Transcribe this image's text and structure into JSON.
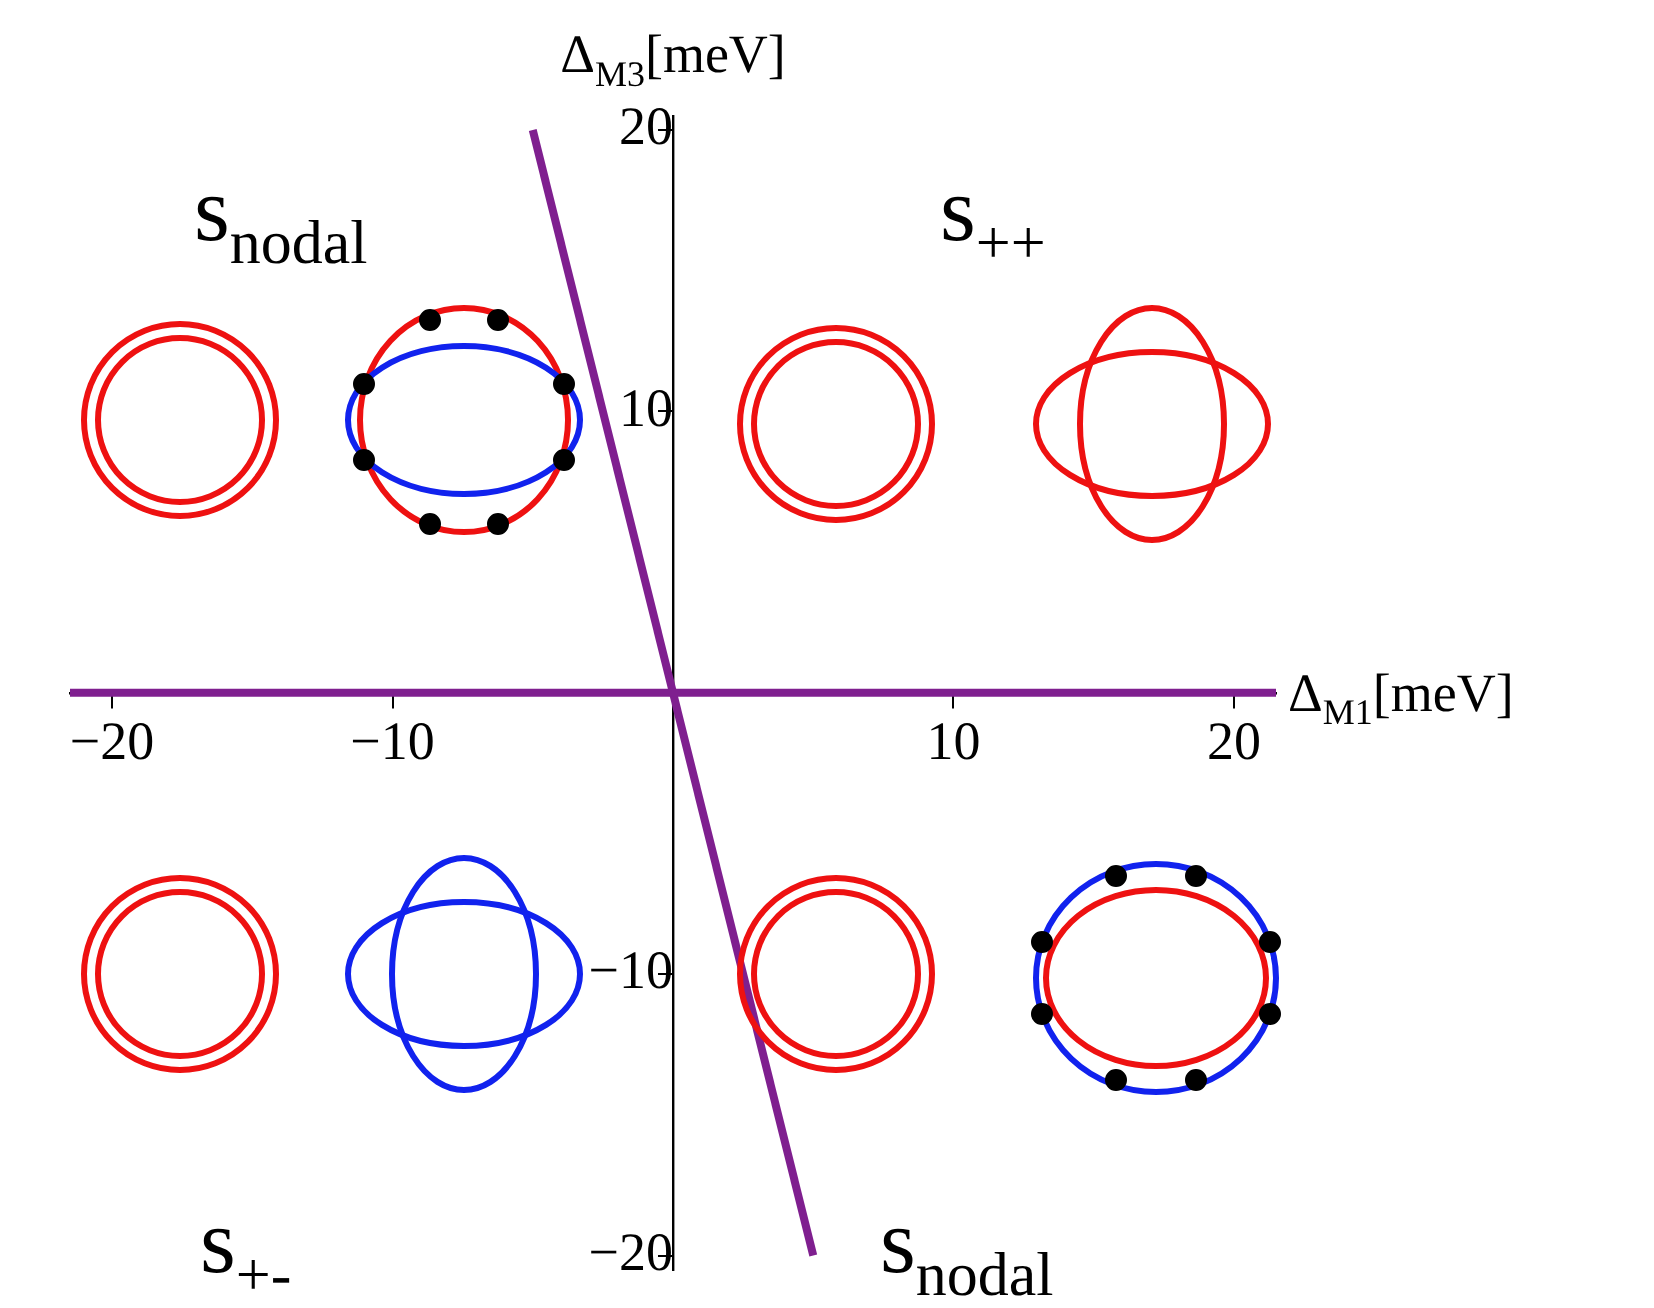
{
  "chart_data": {
    "type": "line",
    "xlabel": "Δ$_{M1}$[meV]",
    "ylabel": "Δ$_{M3}$[meV]",
    "xlim": [
      -21.5,
      21.5
    ],
    "ylim": [
      -20.5,
      20.5
    ],
    "xticks": [
      -20,
      -10,
      10,
      20
    ],
    "yticks": [
      -20,
      -10,
      10,
      20
    ],
    "grid": false,
    "legend": false,
    "marker": "none",
    "series": [
      {
        "color": "#7f1f8f",
        "x": [
          -21.5,
          21.5
        ],
        "values": [
          0,
          0
        ]
      },
      {
        "color": "#7f1f8f",
        "x": [
          -5,
          5
        ],
        "values": [
          20,
          -20
        ]
      }
    ],
    "annotations": [
      "s$_{nodal}$",
      "s$_{++}$",
      "s$_{+-}$",
      "s$_{nodal}$"
    ]
  }
}
